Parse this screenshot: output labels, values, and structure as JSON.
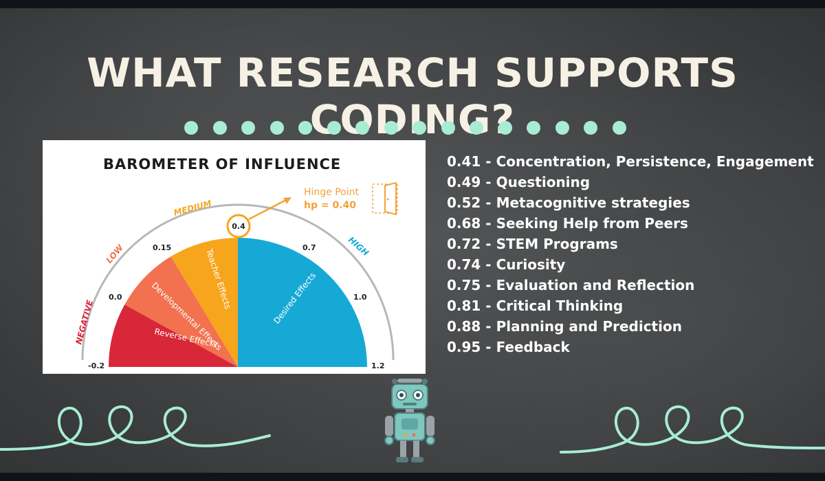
{
  "slide": {
    "title": "WHAT RESEARCH SUPPORTS CODING?",
    "accent_color": "#a8ecd3"
  },
  "barometer": {
    "title": "BAROMETER OF INFLUENCE",
    "zones": [
      "NEGATIVE",
      "LOW",
      "MEDIUM",
      "HIGH"
    ],
    "scale_labels": [
      "-0.2",
      "0.0",
      "0.15",
      "0.4",
      "0.7",
      "1.0",
      "1.2"
    ],
    "segments": [
      {
        "label": "Reverse Effects",
        "color": "#d9273a"
      },
      {
        "label": "Developmental Effects",
        "color": "#f2714e"
      },
      {
        "label": "Teacher Effects",
        "color": "#f7a51c"
      },
      {
        "label": "Desired Effects",
        "color": "#17a9d6"
      }
    ],
    "hinge_title": "Hinge Point",
    "hinge_value": "hp = 0.40"
  },
  "effects": [
    "0.41 - Concentration, Persistence, Engagement",
    "0.49 - Questioning",
    "0.52 - Metacognitive strategies",
    "0.68 - Seeking Help from Peers",
    "0.72 - STEM Programs",
    "0.74 - Curiosity",
    "0.75 - Evaluation and Reflection",
    "0.81 - Critical Thinking",
    "0.88 - Planning and Prediction",
    "0.95 - Feedback"
  ],
  "decorations": {
    "left_swirl": "swirl-icon",
    "right_swirl": "swirl-icon",
    "robot": "robot-icon"
  }
}
